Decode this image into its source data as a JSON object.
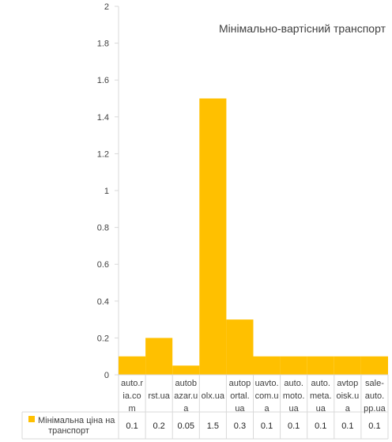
{
  "chart_data": {
    "type": "bar",
    "title": "Мінімально-вартісний транспорт",
    "categories": [
      [
        "auto.r",
        "ia.co",
        "m"
      ],
      [
        "rst.ua"
      ],
      [
        "autob",
        "azar.u",
        "a"
      ],
      [
        "olx.ua"
      ],
      [
        "autop",
        "ortal.",
        "ua"
      ],
      [
        "uavto.",
        "com.u",
        "a"
      ],
      [
        "auto.",
        "moto.",
        "ua"
      ],
      [
        "auto.",
        "meta.",
        "ua"
      ],
      [
        "avtop",
        "oisk.u",
        "a"
      ],
      [
        "sale-",
        "auto.",
        "pp.ua"
      ]
    ],
    "series": [
      {
        "name": "Мінімальна ціна на транспорт",
        "values": [
          0.1,
          0.2,
          0.05,
          1.5,
          0.3,
          0.1,
          0.1,
          0.1,
          0.1,
          0.1
        ],
        "labels": [
          "0.1",
          "0.2",
          "0.05",
          "1.5",
          "0.3",
          "0.1",
          "0.1",
          "0.1",
          "0.1",
          "0.1"
        ],
        "legend_lines": [
          "Мінімальна ціна на",
          "транспорт"
        ]
      }
    ],
    "ylim": [
      0,
      2
    ],
    "yticks": [
      0,
      0.2,
      0.4,
      0.6,
      0.8,
      1,
      1.2,
      1.4,
      1.6,
      1.8,
      2
    ],
    "ytick_labels": [
      "0",
      "0.2",
      "0.4",
      "0.6",
      "0.8",
      "1",
      "1.2",
      "1.4",
      "1.6",
      "1.8",
      "2"
    ],
    "grid": false,
    "legend": "bottom-left, in data table",
    "data_table": true,
    "bar_color": "#FFC000",
    "axis_color": "#D9D9D9"
  }
}
